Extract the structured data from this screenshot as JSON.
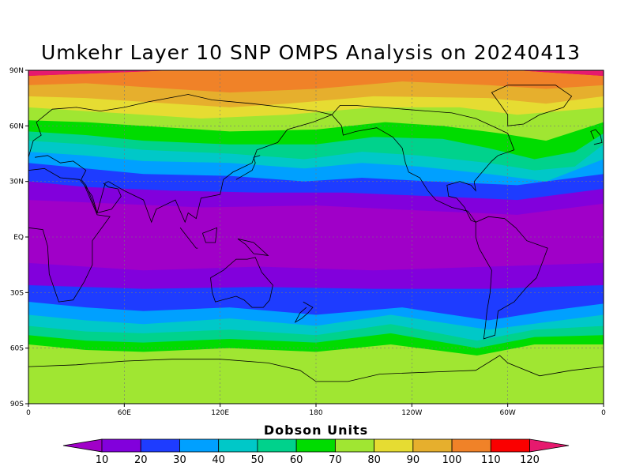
{
  "title": "Umkehr Layer 10 SNP OMPS Analysis on 20240413",
  "map": {
    "lat_labels": [
      "90N",
      "60N",
      "30N",
      "EQ",
      "30S",
      "60S",
      "90S"
    ],
    "lon_labels": [
      "0",
      "60E",
      "120E",
      "180",
      "120W",
      "60W",
      "0"
    ],
    "grid": true
  },
  "legend": {
    "title": "Dobson Units",
    "levels": [
      10,
      20,
      30,
      40,
      50,
      60,
      70,
      80,
      90,
      100,
      110,
      120
    ],
    "colors": [
      "#a000c8",
      "#8200dc",
      "#1e3cff",
      "#00a0ff",
      "#00c8c8",
      "#00d28c",
      "#00dc00",
      "#a0e632",
      "#e6dc32",
      "#e6af2d",
      "#f08228",
      "#fa0000",
      "#e6196e"
    ]
  }
}
